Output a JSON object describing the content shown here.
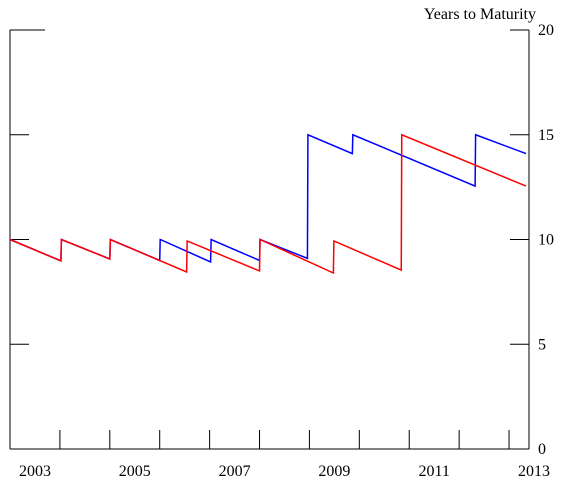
{
  "chart_data": {
    "type": "line",
    "y_axis_label": "Years to Maturity",
    "xlim": [
      2003,
      2013.4
    ],
    "ylim": [
      0,
      20
    ],
    "xticks": [
      {
        "value": 2003.5,
        "label": "2003"
      },
      {
        "value": 2005.5,
        "label": "2005"
      },
      {
        "value": 2007.5,
        "label": "2007"
      },
      {
        "value": 2009.5,
        "label": "2009"
      },
      {
        "value": 2011.5,
        "label": "2011"
      },
      {
        "value": 2013.5,
        "label": "2013"
      }
    ],
    "xminorticks": [
      2004,
      2005,
      2006,
      2007,
      2008,
      2009,
      2010,
      2011,
      2012,
      2013
    ],
    "yticks": [
      0,
      5,
      10,
      15,
      20
    ],
    "series": [
      {
        "color": "#0000ff",
        "x": [
          2003.0,
          2004.02,
          2004.03,
          2005.0,
          2005.01,
          2006.0,
          2006.01,
          2007.02,
          2007.03,
          2008.0,
          2008.01,
          2008.96,
          2008.97,
          2009.86,
          2009.87,
          2012.32,
          2012.33,
          2013.34
        ],
        "values": [
          10.0,
          8.98,
          10.0,
          9.07,
          10.0,
          9.0,
          10.0,
          8.93,
          10.0,
          9.0,
          10.0,
          9.1,
          15.0,
          14.1,
          15.0,
          12.55,
          15.0,
          14.1
        ]
      },
      {
        "color": "#ff0000",
        "x": [
          2003.0,
          2004.02,
          2004.03,
          2005.0,
          2005.01,
          2006.54,
          2006.55,
          2008.0,
          2008.01,
          2009.48,
          2009.49,
          2010.84,
          2010.85,
          2013.34
        ],
        "values": [
          10.0,
          8.98,
          10.0,
          9.07,
          10.0,
          8.45,
          9.93,
          8.5,
          10.0,
          8.4,
          9.93,
          8.54,
          15.0,
          12.55
        ]
      }
    ]
  }
}
